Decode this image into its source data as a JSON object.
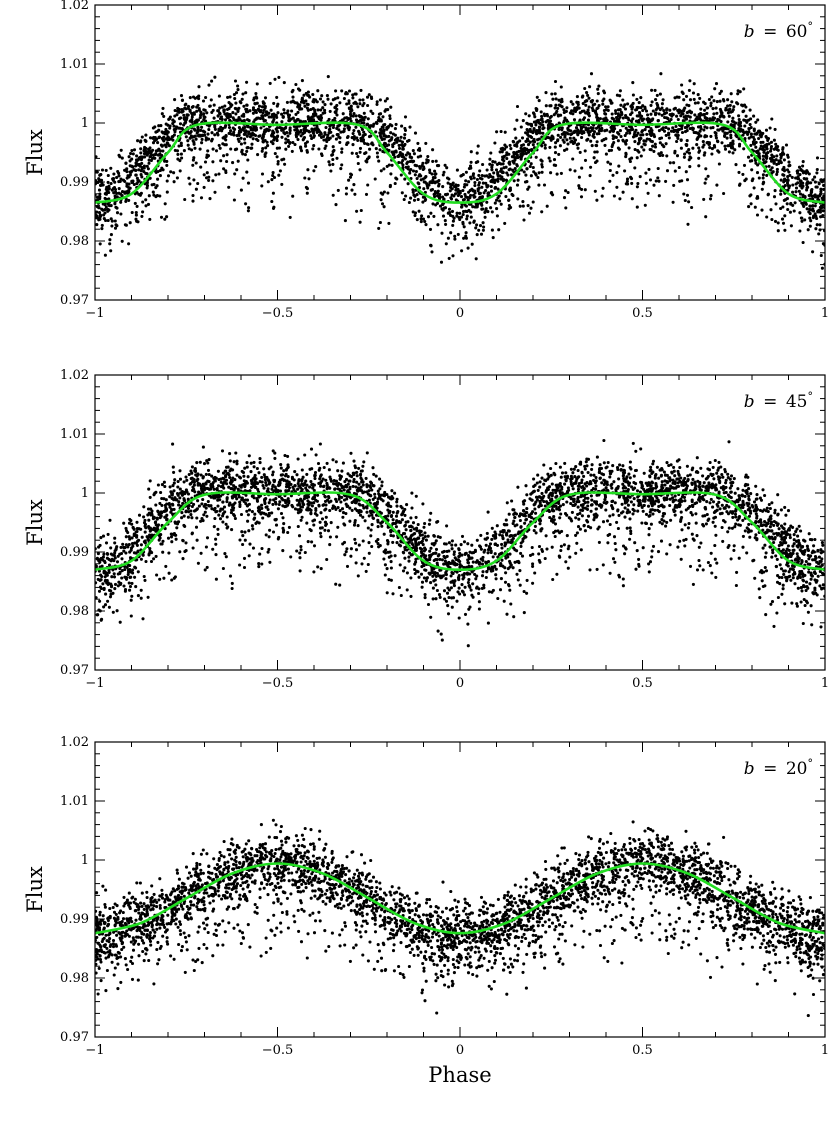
{
  "chart_data": [
    {
      "type": "scatter",
      "ylabel": "Flux",
      "xlabel": "",
      "annotation": {
        "symbol": "b",
        "eq": "=",
        "value": "60",
        "unit": "°"
      },
      "xlim": [
        -1,
        1
      ],
      "ylim": [
        0.97,
        1.02
      ],
      "x_ticks": [
        -1,
        -0.5,
        0,
        0.5,
        1
      ],
      "x_tick_labels": [
        "−1",
        "−0.5",
        "0",
        "0.5",
        "1"
      ],
      "y_ticks": [
        0.97,
        0.98,
        0.99,
        1,
        1.01,
        1.02
      ],
      "y_tick_labels": [
        "0.97",
        "0.98",
        "0.99",
        "1",
        "1.01",
        "1.02"
      ],
      "series": [
        {
          "kind": "points",
          "color": "#000000",
          "amplitude": 0.013,
          "flat_half_width": 0.22,
          "baseline": 0.987
        },
        {
          "kind": "model",
          "color": "#22dd22",
          "x": [
            -1,
            -0.9,
            -0.8,
            -0.72,
            -0.5,
            -0.28,
            -0.2,
            -0.1,
            0,
            0.1,
            0.2,
            0.28,
            0.5,
            0.72,
            0.8,
            0.9,
            1
          ],
          "y": [
            0.9865,
            0.988,
            0.995,
            0.9997,
            0.9997,
            0.9997,
            0.995,
            0.988,
            0.9865,
            0.988,
            0.995,
            0.9997,
            0.9997,
            0.9997,
            0.995,
            0.988,
            0.9865
          ]
        }
      ]
    },
    {
      "type": "scatter",
      "ylabel": "Flux",
      "xlabel": "",
      "annotation": {
        "symbol": "b",
        "eq": "=",
        "value": "45",
        "unit": "°"
      },
      "xlim": [
        -1,
        1
      ],
      "ylim": [
        0.97,
        1.02
      ],
      "x_ticks": [
        -1,
        -0.5,
        0,
        0.5,
        1
      ],
      "x_tick_labels": [
        "−1",
        "−0.5",
        "0",
        "0.5",
        "1"
      ],
      "y_ticks": [
        0.97,
        0.98,
        0.99,
        1,
        1.01,
        1.02
      ],
      "y_tick_labels": [
        "0.97",
        "0.98",
        "0.99",
        "1",
        "1.01",
        "1.02"
      ],
      "series": [
        {
          "kind": "points",
          "color": "#000000",
          "amplitude": 0.013,
          "flat_half_width": 0.2,
          "baseline": 0.987
        },
        {
          "kind": "model",
          "color": "#22dd22",
          "x": [
            -1,
            -0.9,
            -0.8,
            -0.7,
            -0.5,
            -0.3,
            -0.2,
            -0.1,
            0,
            0.1,
            0.2,
            0.3,
            0.5,
            0.7,
            0.8,
            0.9,
            1
          ],
          "y": [
            0.987,
            0.9885,
            0.995,
            0.9997,
            0.9998,
            0.9997,
            0.995,
            0.9885,
            0.987,
            0.9885,
            0.995,
            0.9997,
            0.9998,
            0.9997,
            0.995,
            0.9885,
            0.987
          ]
        }
      ]
    },
    {
      "type": "scatter",
      "ylabel": "Flux",
      "xlabel": "Phase",
      "annotation": {
        "symbol": "b",
        "eq": "=",
        "value": "20",
        "unit": "°"
      },
      "xlim": [
        -1,
        1
      ],
      "ylim": [
        0.97,
        1.02
      ],
      "x_ticks": [
        -1,
        -0.5,
        0,
        0.5,
        1
      ],
      "x_tick_labels": [
        "−1",
        "−0.5",
        "0",
        "0.5",
        "1"
      ],
      "y_ticks": [
        0.97,
        0.98,
        0.99,
        1,
        1.01,
        1.02
      ],
      "y_tick_labels": [
        "0.97",
        "0.98",
        "0.99",
        "1",
        "1.01",
        "1.02"
      ],
      "series": [
        {
          "kind": "points",
          "color": "#000000",
          "amplitude": 0.012,
          "flat_half_width": 0.0,
          "baseline": 0.9875
        },
        {
          "kind": "model",
          "color": "#22dd22",
          "x": [
            -1,
            -0.875,
            -0.75,
            -0.625,
            -0.5,
            -0.375,
            -0.25,
            -0.125,
            0,
            0.125,
            0.25,
            0.375,
            0.5,
            0.625,
            0.75,
            0.875,
            1
          ],
          "y": [
            0.9876,
            0.9893,
            0.9935,
            0.9977,
            0.9994,
            0.9977,
            0.9935,
            0.9893,
            0.9876,
            0.9893,
            0.9935,
            0.9977,
            0.9994,
            0.9977,
            0.9935,
            0.9893,
            0.9876
          ]
        }
      ]
    }
  ]
}
